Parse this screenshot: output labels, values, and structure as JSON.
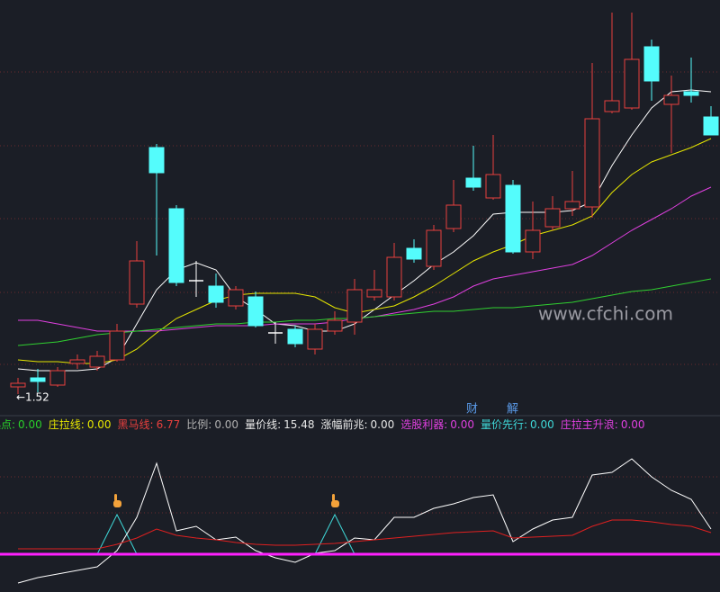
{
  "chart_data": [
    {
      "type": "candlestick",
      "open": [
        1.56,
        1.61,
        1.57,
        1.69,
        1.67,
        1.71,
        2.02,
        2.89,
        2.55,
        2.15,
        2.12,
        2.01,
        2.06,
        1.86,
        1.88,
        1.77,
        1.87,
        1.92,
        2.06,
        2.06,
        2.33,
        2.23,
        2.44,
        2.72,
        2.61,
        2.68,
        2.31,
        2.45,
        2.55,
        2.56,
        3.09,
        3.11,
        3.45,
        3.13,
        3.2,
        3.06
      ],
      "high": [
        1.61,
        1.66,
        1.67,
        1.74,
        1.76,
        1.91,
        2.37,
        2.91,
        2.57,
        2.26,
        2.19,
        2.12,
        2.09,
        1.92,
        1.9,
        1.91,
        1.98,
        2.16,
        2.21,
        2.36,
        2.38,
        2.46,
        2.71,
        2.9,
        2.96,
        2.71,
        2.59,
        2.62,
        2.76,
        3.36,
        3.64,
        3.64,
        3.49,
        3.29,
        3.39,
        3.12
      ],
      "low": [
        1.52,
        1.53,
        1.56,
        1.66,
        1.65,
        1.7,
        2.0,
        2.29,
        2.12,
        2.06,
        2.0,
        1.99,
        1.89,
        1.8,
        1.78,
        1.74,
        1.85,
        1.85,
        2.04,
        2.04,
        2.25,
        2.21,
        2.42,
        2.65,
        2.6,
        2.3,
        2.27,
        2.43,
        2.51,
        2.5,
        3.08,
        3.1,
        3.15,
        2.86,
        3.14,
        2.96
      ],
      "close": [
        1.58,
        1.59,
        1.65,
        1.71,
        1.73,
        1.87,
        2.26,
        2.75,
        2.14,
        2.15,
        2.03,
        2.1,
        1.9,
        1.86,
        1.8,
        1.88,
        1.93,
        2.1,
        2.1,
        2.28,
        2.27,
        2.43,
        2.57,
        2.67,
        2.74,
        2.31,
        2.43,
        2.55,
        2.59,
        3.05,
        3.15,
        3.38,
        3.26,
        3.18,
        3.18,
        2.96
      ],
      "up_color": "#e8403e",
      "down_color": "#54fcfc",
      "doji_color": "#ffffff",
      "ylim": [
        1.435,
        3.71
      ],
      "yticks": [
        3.31,
        2.9,
        2.495,
        2.085,
        1.685
      ],
      "grid": true,
      "series": [
        {
          "color": "#ffffff",
          "values": [
            1.66,
            1.65,
            1.65,
            1.65,
            1.66,
            1.72,
            1.91,
            2.1,
            2.21,
            2.25,
            2.21,
            2.06,
            1.99,
            1.91,
            1.9,
            1.87,
            1.87,
            1.91,
            1.99,
            2.07,
            2.15,
            2.24,
            2.31,
            2.4,
            2.52,
            2.53,
            2.53,
            2.53,
            2.54,
            2.59,
            2.79,
            2.96,
            3.11,
            3.2,
            3.21,
            3.2
          ]
        },
        {
          "color": "#e6e600",
          "values": [
            1.71,
            1.7,
            1.7,
            1.69,
            1.69,
            1.71,
            1.77,
            1.86,
            1.94,
            1.99,
            2.04,
            2.07,
            2.08,
            2.08,
            2.08,
            2.06,
            2.0,
            1.97,
            1.99,
            2.01,
            2.06,
            2.12,
            2.19,
            2.26,
            2.31,
            2.35,
            2.4,
            2.43,
            2.46,
            2.51,
            2.64,
            2.74,
            2.81,
            2.85,
            2.89,
            2.94
          ]
        },
        {
          "color": "#e040e0",
          "values": [
            1.93,
            1.93,
            1.91,
            1.89,
            1.87,
            1.87,
            1.87,
            1.87,
            1.88,
            1.89,
            1.9,
            1.9,
            1.9,
            1.91,
            1.91,
            1.91,
            1.92,
            1.94,
            1.95,
            1.97,
            1.99,
            2.02,
            2.06,
            2.12,
            2.16,
            2.18,
            2.2,
            2.22,
            2.24,
            2.29,
            2.36,
            2.43,
            2.49,
            2.55,
            2.62,
            2.67
          ]
        },
        {
          "color": "#30d030",
          "values": [
            1.79,
            1.8,
            1.81,
            1.83,
            1.85,
            1.86,
            1.87,
            1.88,
            1.89,
            1.9,
            1.91,
            1.91,
            1.92,
            1.92,
            1.93,
            1.93,
            1.94,
            1.94,
            1.95,
            1.96,
            1.97,
            1.98,
            1.98,
            1.99,
            2.0,
            2.0,
            2.01,
            2.02,
            2.03,
            2.05,
            2.07,
            2.09,
            2.1,
            2.12,
            2.14,
            2.16
          ]
        }
      ],
      "low_label": "←1.52",
      "watermark": "www.cfchi.com",
      "markers": [
        "财",
        "解"
      ]
    },
    {
      "type": "line",
      "legend": [
        {
          "label": "起点:",
          "value": "0.00",
          "color": "#2ad02a"
        },
        {
          "label": "庄拉线:",
          "value": "0.00",
          "color": "#e6e600"
        },
        {
          "label": "黑马线:",
          "value": "6.77",
          "color": "#e8403e"
        },
        {
          "label": "比例:",
          "value": "0.00",
          "color": "#b0b0b0"
        },
        {
          "label": "量价线:",
          "value": "15.48",
          "color": "#e8e8e8"
        },
        {
          "label": "涨幅前兆:",
          "value": "0.00",
          "color": "#e8e8e8"
        },
        {
          "label": "选股利器:",
          "value": "0.00",
          "color": "#e040e0"
        },
        {
          "label": "量价先行:",
          "value": "0.00",
          "color": "#3fd8d8"
        },
        {
          "label": "庄拉主升浪:",
          "value": "0.00",
          "color": "#e040e0"
        }
      ],
      "ylim": [
        -21,
        56
      ],
      "yticks": [
        43,
        23
      ],
      "grid": true,
      "series": [
        {
          "color": "#ffffff",
          "values": [
            -16,
            -13,
            -11,
            -9,
            -7,
            2,
            20.5,
            50.5,
            13,
            15.5,
            8,
            9.5,
            2,
            -2,
            -4.5,
            0.5,
            2,
            9,
            8,
            20.5,
            20.5,
            25.5,
            28,
            31.5,
            33,
            7,
            14,
            19,
            20.5,
            44,
            45.5,
            53,
            43,
            35.5,
            30.5,
            14
          ]
        },
        {
          "color": "#e02020",
          "values": [
            3,
            3,
            3,
            3,
            3,
            5.5,
            9,
            14,
            10.5,
            9,
            8,
            6.5,
            5.5,
            5,
            5,
            5.5,
            6,
            7,
            8,
            9,
            10,
            11,
            12,
            12.5,
            13,
            9,
            9.5,
            10,
            10.5,
            15.5,
            19,
            19,
            18,
            16.5,
            15.5,
            12
          ]
        }
      ],
      "spikes": {
        "color": "#3fd8d8",
        "positions": [
          5,
          16
        ],
        "values": [
          22,
          22
        ]
      },
      "baseline": {
        "value": 0,
        "color": "#ff20ff"
      }
    }
  ]
}
